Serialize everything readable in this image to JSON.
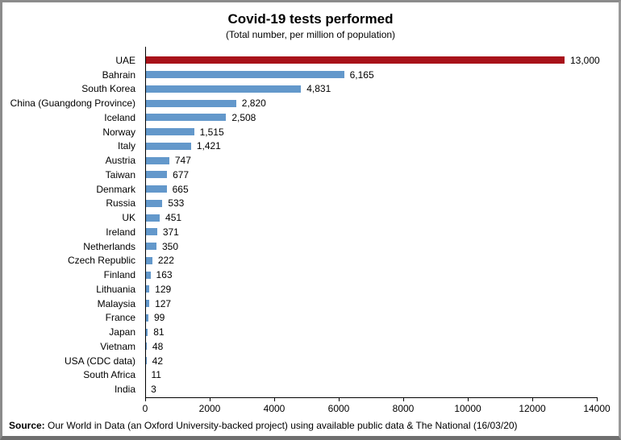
{
  "header": {
    "title": "Covid-19 tests performed",
    "subtitle": "(Total number, per million of population)"
  },
  "chart_data": {
    "type": "bar",
    "orientation": "horizontal",
    "title": "Covid-19 tests performed",
    "subtitle": "(Total number, per million of population)",
    "categories": [
      "UAE",
      "Bahrain",
      "South Korea",
      "China (Guangdong Province)",
      "Iceland",
      "Norway",
      "Italy",
      "Austria",
      "Taiwan",
      "Denmark",
      "Russia",
      "UK",
      "Ireland",
      "Netherlands",
      "Czech Republic",
      "Finland",
      "Lithuania",
      "Malaysia",
      "France",
      "Japan",
      "Vietnam",
      "USA (CDC data)",
      "South Africa",
      "India"
    ],
    "values": [
      13000,
      6165,
      4831,
      2820,
      2508,
      1515,
      1421,
      747,
      677,
      665,
      533,
      451,
      371,
      350,
      222,
      163,
      129,
      127,
      99,
      81,
      48,
      42,
      11,
      3
    ],
    "value_labels": [
      "13,000",
      "6,165",
      "4,831",
      "2,820",
      "2,508",
      "1,515",
      "1,421",
      "747",
      "677",
      "665",
      "533",
      "451",
      "371",
      "350",
      "222",
      "163",
      "129",
      "127",
      "99",
      "81",
      "48",
      "42",
      "11",
      "3"
    ],
    "xlim": [
      0,
      14000
    ],
    "xticks": [
      0,
      2000,
      4000,
      6000,
      8000,
      10000,
      12000,
      14000
    ],
    "grid": false,
    "legend": "none",
    "bar_colors": {
      "highlight": "#a8121a",
      "default": "#6398cb"
    },
    "highlight_index": 0
  },
  "footer": {
    "source_label": "Source:",
    "source_text": " Our World in Data (an Oxford University-backed project) using available public data & The National  (16/03/20)"
  }
}
